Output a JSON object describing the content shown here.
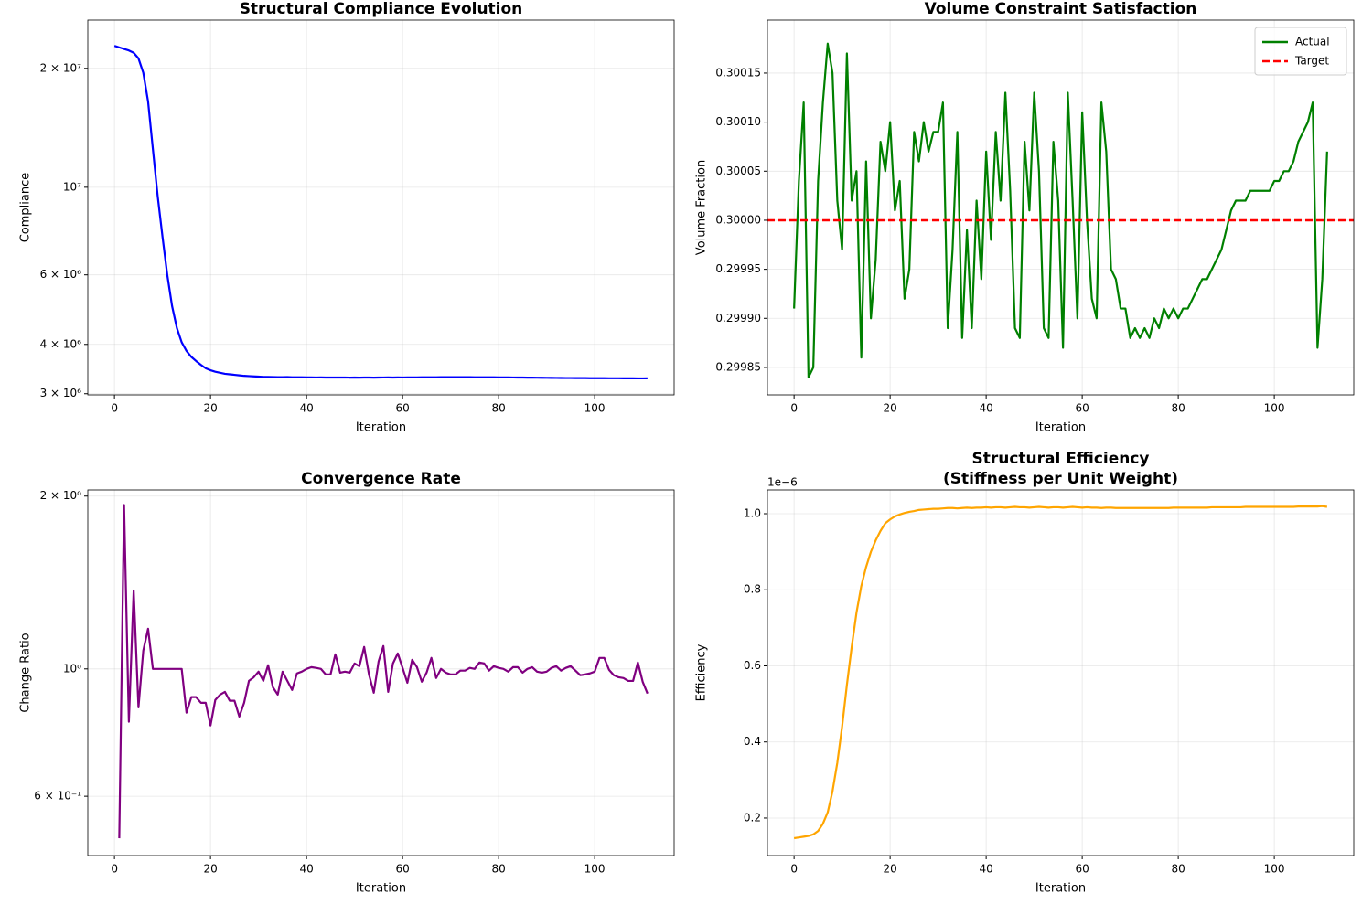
{
  "chart_data": [
    {
      "type": "line",
      "title": [
        "Structural Compliance Evolution"
      ],
      "x_label": "Iteration",
      "y_label": "Compliance",
      "log_y": true,
      "grid": true,
      "xlim": [
        -5.55,
        116.55
      ],
      "ylim": [
        2980000,
        26500000
      ],
      "xticks": [
        0,
        20,
        40,
        60,
        80,
        100
      ],
      "yticks": [
        {
          "value": 3000000,
          "label": "3 × 10⁶"
        },
        {
          "value": 4000000,
          "label": "4 × 10⁶"
        },
        {
          "value": 6000000,
          "label": "6 × 10⁶"
        },
        {
          "value": 10000000,
          "label": "10⁷"
        },
        {
          "value": 20000000,
          "label": "2 × 10⁷"
        }
      ],
      "x": [
        0,
        1,
        2,
        3,
        4,
        5,
        6,
        7,
        8,
        9,
        10,
        11,
        12,
        13,
        14,
        15,
        16,
        17,
        18,
        19,
        20,
        21,
        22,
        23,
        24,
        25,
        26,
        27,
        28,
        29,
        30,
        31,
        32,
        33,
        34,
        35,
        36,
        37,
        38,
        39,
        40,
        41,
        42,
        43,
        44,
        45,
        46,
        47,
        48,
        49,
        50,
        51,
        52,
        53,
        54,
        55,
        56,
        57,
        58,
        59,
        60,
        61,
        62,
        63,
        64,
        65,
        66,
        67,
        68,
        69,
        70,
        71,
        72,
        73,
        74,
        75,
        76,
        77,
        78,
        79,
        80,
        81,
        82,
        83,
        84,
        85,
        86,
        87,
        88,
        89,
        90,
        91,
        92,
        93,
        94,
        95,
        96,
        97,
        98,
        99,
        100,
        101,
        102,
        103,
        104,
        105,
        106,
        107,
        108,
        109,
        110,
        111
      ],
      "series": [
        {
          "color": "#0000ff",
          "values": [
            22800000,
            22600000,
            22400000,
            22200000,
            21900000,
            21200000,
            19500000,
            16500000,
            12500000,
            9500000,
            7500000,
            6000000,
            5000000,
            4400000,
            4050000,
            3850000,
            3720000,
            3630000,
            3550000,
            3480000,
            3440000,
            3410000,
            3390000,
            3370000,
            3360000,
            3350000,
            3340000,
            3330000,
            3325000,
            3320000,
            3315000,
            3310000,
            3308000,
            3306000,
            3305000,
            3304000,
            3306000,
            3303000,
            3302000,
            3302000,
            3300000,
            3300000,
            3299000,
            3300000,
            3298000,
            3298000,
            3297000,
            3299000,
            3297000,
            3296000,
            3297000,
            3296000,
            3297000,
            3298000,
            3296000,
            3298000,
            3299000,
            3300000,
            3298000,
            3300000,
            3299000,
            3300000,
            3301000,
            3300000,
            3302000,
            3303000,
            3302000,
            3303000,
            3304000,
            3304000,
            3304000,
            3304000,
            3304000,
            3304000,
            3304000,
            3303000,
            3303000,
            3303000,
            3302000,
            3302000,
            3301000,
            3301000,
            3300000,
            3299000,
            3298000,
            3297000,
            3296000,
            3295000,
            3294000,
            3293000,
            3292000,
            3291000,
            3290000,
            3289000,
            3288000,
            3288000,
            3287000,
            3286000,
            3286000,
            3285000,
            3285000,
            3284000,
            3284000,
            3283000,
            3283000,
            3283000,
            3282000,
            3282000,
            3282000,
            3281000,
            3281000,
            3282000
          ]
        }
      ]
    },
    {
      "type": "line",
      "title": [
        "Volume Constraint Satisfaction"
      ],
      "x_label": "Iteration",
      "y_label": "Volume Fraction",
      "log_y": false,
      "grid": true,
      "legend": "upper right",
      "xlim": [
        -5.55,
        116.55
      ],
      "ylim": [
        0.299822,
        0.300204
      ],
      "xticks": [
        0,
        20,
        40,
        60,
        80,
        100
      ],
      "yticks": [
        {
          "value": 0.29985,
          "label": "0.29985"
        },
        {
          "value": 0.2999,
          "label": "0.29990"
        },
        {
          "value": 0.29995,
          "label": "0.29995"
        },
        {
          "value": 0.3,
          "label": "0.30000"
        },
        {
          "value": 0.30005,
          "label": "0.30005"
        },
        {
          "value": 0.3001,
          "label": "0.30010"
        },
        {
          "value": 0.30015,
          "label": "0.30015"
        }
      ],
      "x": [
        0,
        1,
        2,
        3,
        4,
        5,
        6,
        7,
        8,
        9,
        10,
        11,
        12,
        13,
        14,
        15,
        16,
        17,
        18,
        19,
        20,
        21,
        22,
        23,
        24,
        25,
        26,
        27,
        28,
        29,
        30,
        31,
        32,
        33,
        34,
        35,
        36,
        37,
        38,
        39,
        40,
        41,
        42,
        43,
        44,
        45,
        46,
        47,
        48,
        49,
        50,
        51,
        52,
        53,
        54,
        55,
        56,
        57,
        58,
        59,
        60,
        61,
        62,
        63,
        64,
        65,
        66,
        67,
        68,
        69,
        70,
        71,
        72,
        73,
        74,
        75,
        76,
        77,
        78,
        79,
        80,
        81,
        82,
        83,
        84,
        85,
        86,
        87,
        88,
        89,
        90,
        91,
        92,
        93,
        94,
        95,
        96,
        97,
        98,
        99,
        100,
        101,
        102,
        103,
        104,
        105,
        106,
        107,
        108,
        109,
        110,
        111
      ],
      "series": [
        {
          "name": "Actual",
          "color": "#008000",
          "values": [
            0.29991,
            0.30004,
            0.30012,
            0.29984,
            0.29985,
            0.30004,
            0.30012,
            0.30018,
            0.30015,
            0.30002,
            0.29997,
            0.30017,
            0.30002,
            0.30005,
            0.29986,
            0.30006,
            0.2999,
            0.29996,
            0.30008,
            0.30005,
            0.3001,
            0.30001,
            0.30004,
            0.29992,
            0.29995,
            0.30009,
            0.30006,
            0.3001,
            0.30007,
            0.30009,
            0.30009,
            0.30012,
            0.29989,
            0.29997,
            0.30009,
            0.29988,
            0.29999,
            0.29989,
            0.30002,
            0.29994,
            0.30007,
            0.29998,
            0.30009,
            0.30002,
            0.30013,
            0.30003,
            0.29989,
            0.29988,
            0.30008,
            0.30001,
            0.30013,
            0.30005,
            0.29989,
            0.29988,
            0.30008,
            0.30002,
            0.29987,
            0.30013,
            0.30002,
            0.2999,
            0.30011,
            0.3,
            0.29992,
            0.2999,
            0.30012,
            0.30007,
            0.29995,
            0.29994,
            0.29991,
            0.29991,
            0.29988,
            0.29989,
            0.29988,
            0.29989,
            0.29988,
            0.2999,
            0.29989,
            0.29991,
            0.2999,
            0.29991,
            0.2999,
            0.29991,
            0.29991,
            0.29992,
            0.29993,
            0.29994,
            0.29994,
            0.29995,
            0.29996,
            0.29997,
            0.29999,
            0.30001,
            0.30002,
            0.30002,
            0.30002,
            0.30003,
            0.30003,
            0.30003,
            0.30003,
            0.30003,
            0.30004,
            0.30004,
            0.30005,
            0.30005,
            0.30006,
            0.30008,
            0.30009,
            0.3001,
            0.30012,
            0.29987,
            0.29994,
            0.30007
          ]
        },
        {
          "name": "Target",
          "color": "#ff0000",
          "dashed": true,
          "hline": 0.3
        }
      ]
    },
    {
      "type": "line",
      "title": [
        "Convergence Rate"
      ],
      "x_label": "Iteration",
      "y_label": "Change Ratio",
      "log_y": true,
      "grid": true,
      "xlim": [
        -5.55,
        116.55
      ],
      "ylim": [
        0.473,
        2.05
      ],
      "xticks": [
        0,
        20,
        40,
        60,
        80,
        100
      ],
      "yticks": [
        {
          "value": 0.6,
          "label": "6 × 10⁻¹"
        },
        {
          "value": 1,
          "label": "10⁰"
        },
        {
          "value": 2,
          "label": "2 × 10⁰"
        }
      ],
      "x": [
        1,
        2,
        3,
        4,
        5,
        6,
        7,
        8,
        9,
        10,
        11,
        12,
        13,
        14,
        15,
        16,
        17,
        18,
        19,
        20,
        21,
        22,
        23,
        24,
        25,
        26,
        27,
        28,
        29,
        30,
        31,
        32,
        33,
        34,
        35,
        36,
        37,
        38,
        39,
        40,
        41,
        42,
        43,
        44,
        45,
        46,
        47,
        48,
        49,
        50,
        51,
        52,
        53,
        54,
        55,
        56,
        57,
        58,
        59,
        60,
        61,
        62,
        63,
        64,
        65,
        66,
        67,
        68,
        69,
        70,
        71,
        72,
        73,
        74,
        75,
        76,
        77,
        78,
        79,
        80,
        81,
        82,
        83,
        84,
        85,
        86,
        87,
        88,
        89,
        90,
        91,
        92,
        93,
        94,
        95,
        96,
        97,
        98,
        99,
        100,
        101,
        102,
        103,
        104,
        105,
        106,
        107,
        108,
        109,
        110,
        111
      ],
      "series": [
        {
          "color": "#800080",
          "values": [
            0.507,
            1.93,
            0.809,
            1.37,
            0.857,
            1.076,
            1.175,
            1.0,
            1.0,
            1.0,
            1.0,
            1.0,
            1.0,
            1.0,
            0.839,
            0.893,
            0.893,
            0.873,
            0.873,
            0.797,
            0.883,
            0.902,
            0.912,
            0.88,
            0.88,
            0.826,
            0.873,
            0.953,
            0.967,
            0.989,
            0.953,
            1.015,
            0.929,
            0.902,
            0.989,
            0.953,
            0.919,
            0.982,
            0.989,
            1.0,
            1.007,
            1.004,
            1.0,
            0.978,
            0.978,
            1.06,
            0.985,
            0.989,
            0.985,
            1.022,
            1.011,
            1.092,
            0.978,
            0.909,
            1.03,
            1.096,
            0.912,
            1.022,
            1.064,
            1.004,
            0.946,
            1.037,
            1.007,
            0.95,
            0.985,
            1.045,
            0.964,
            1.0,
            0.985,
            0.978,
            0.978,
            0.993,
            0.993,
            1.004,
            1.0,
            1.026,
            1.022,
            0.993,
            1.011,
            1.004,
            1.0,
            0.989,
            1.007,
            1.007,
            0.985,
            1.0,
            1.007,
            0.989,
            0.985,
            0.989,
            1.004,
            1.011,
            0.993,
            1.004,
            1.011,
            0.993,
            0.975,
            0.978,
            0.982,
            0.989,
            1.045,
            1.045,
            0.996,
            0.975,
            0.967,
            0.964,
            0.953,
            0.953,
            1.026,
            0.95,
            0.906
          ]
        }
      ]
    },
    {
      "type": "line",
      "title": [
        "Structural Efficiency",
        "(Stiffness per Unit Weight)"
      ],
      "x_label": "Iteration",
      "y_label": "Efficiency",
      "y_offset_label": "1e−6",
      "log_y": false,
      "grid": true,
      "xlim": [
        -5.55,
        116.55
      ],
      "ylim": [
        0.1014,
        1.0625
      ],
      "xticks": [
        0,
        20,
        40,
        60,
        80,
        100
      ],
      "yticks": [
        0.2,
        0.4,
        0.6,
        0.8,
        {
          "value": 1,
          "label": "1.0"
        }
      ],
      "x": [
        0,
        1,
        2,
        3,
        4,
        5,
        6,
        7,
        8,
        9,
        10,
        11,
        12,
        13,
        14,
        15,
        16,
        17,
        18,
        19,
        20,
        21,
        22,
        23,
        24,
        25,
        26,
        27,
        28,
        29,
        30,
        31,
        32,
        33,
        34,
        35,
        36,
        37,
        38,
        39,
        40,
        41,
        42,
        43,
        44,
        45,
        46,
        47,
        48,
        49,
        50,
        51,
        52,
        53,
        54,
        55,
        56,
        57,
        58,
        59,
        60,
        61,
        62,
        63,
        64,
        65,
        66,
        67,
        68,
        69,
        70,
        71,
        72,
        73,
        74,
        75,
        76,
        77,
        78,
        79,
        80,
        81,
        82,
        83,
        84,
        85,
        86,
        87,
        88,
        89,
        90,
        91,
        92,
        93,
        94,
        95,
        96,
        97,
        98,
        99,
        100,
        101,
        102,
        103,
        104,
        105,
        106,
        107,
        108,
        109,
        110,
        111
      ],
      "series": [
        {
          "color": "#ffa500",
          "values": [
            0.147,
            0.149,
            0.151,
            0.153,
            0.157,
            0.166,
            0.185,
            0.215,
            0.27,
            0.345,
            0.44,
            0.55,
            0.65,
            0.74,
            0.81,
            0.86,
            0.9,
            0.93,
            0.955,
            0.975,
            0.985,
            0.993,
            0.998,
            1.002,
            1.005,
            1.007,
            1.01,
            1.011,
            1.012,
            1.013,
            1.013,
            1.014,
            1.015,
            1.015,
            1.014,
            1.015,
            1.016,
            1.015,
            1.016,
            1.016,
            1.017,
            1.016,
            1.017,
            1.017,
            1.016,
            1.017,
            1.018,
            1.017,
            1.017,
            1.016,
            1.017,
            1.018,
            1.017,
            1.016,
            1.017,
            1.017,
            1.016,
            1.017,
            1.018,
            1.017,
            1.016,
            1.017,
            1.016,
            1.016,
            1.015,
            1.016,
            1.016,
            1.015,
            1.015,
            1.015,
            1.015,
            1.015,
            1.015,
            1.015,
            1.015,
            1.015,
            1.015,
            1.015,
            1.015,
            1.016,
            1.016,
            1.016,
            1.016,
            1.016,
            1.016,
            1.016,
            1.016,
            1.017,
            1.017,
            1.017,
            1.017,
            1.017,
            1.017,
            1.017,
            1.018,
            1.018,
            1.018,
            1.018,
            1.018,
            1.018,
            1.018,
            1.018,
            1.018,
            1.018,
            1.018,
            1.019,
            1.019,
            1.019,
            1.019,
            1.019,
            1.02,
            1.018
          ]
        }
      ]
    }
  ]
}
